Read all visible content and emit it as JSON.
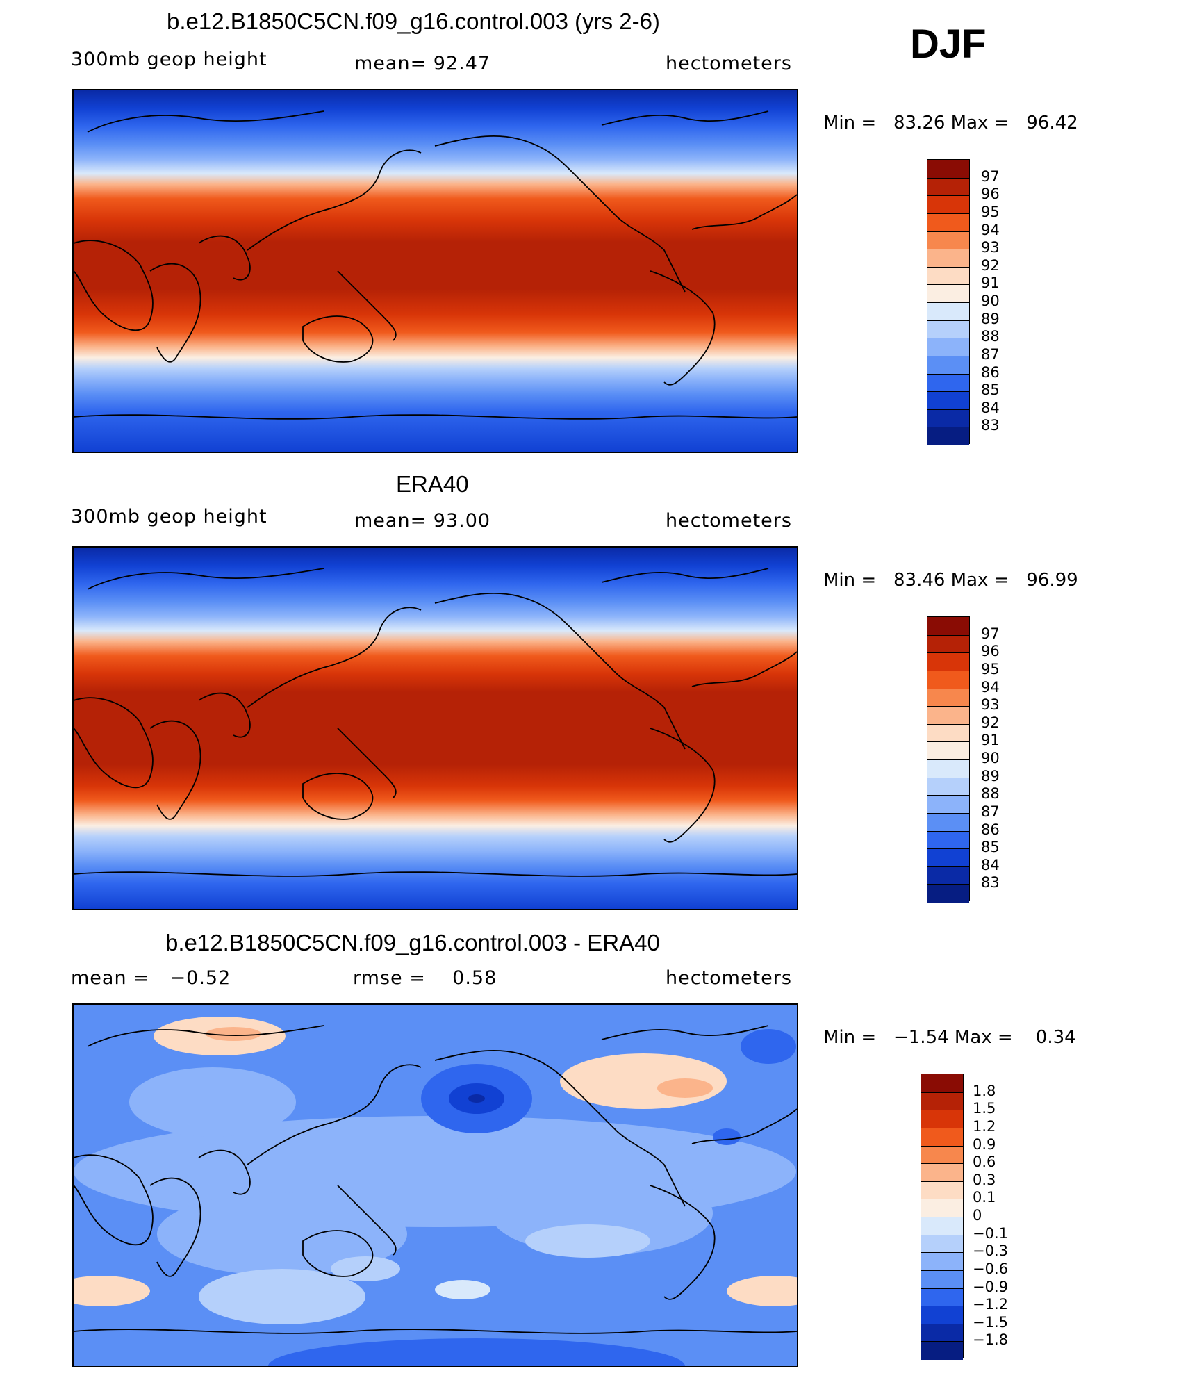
{
  "season_label": "DJF",
  "chart_data": [
    {
      "type": "heatmap",
      "title": "b.e12.B1850C5CN.f09_g16.control.003 (yrs 2-6)",
      "left_label": "300mb geop height",
      "center_label": "mean=   92.47",
      "right_label": "hectometers",
      "min_max": "Min =   83.26 Max =   96.42",
      "mean": 92.47,
      "min": 83.26,
      "max": 96.42,
      "colorbar": {
        "labels": [
          "97",
          "96",
          "95",
          "94",
          "93",
          "92",
          "91",
          "90",
          "89",
          "88",
          "87",
          "86",
          "85",
          "84",
          "83"
        ],
        "colors": [
          "#8a0c04",
          "#b52206",
          "#d83508",
          "#f05a1c",
          "#f7874d",
          "#fbb48b",
          "#fddcc4",
          "#fbeee2",
          "#d9e9fb",
          "#b5d0fb",
          "#8cb3fa",
          "#5b8ff5",
          "#2f66ee",
          "#1141d3",
          "#0a2aa6",
          "#061d82"
        ]
      }
    },
    {
      "type": "heatmap",
      "title": "ERA40",
      "left_label": "300mb geop height",
      "center_label": "mean=   93.00",
      "right_label": "hectometers",
      "min_max": "Min =   83.46 Max =   96.99",
      "mean": 93.0,
      "min": 83.46,
      "max": 96.99,
      "colorbar": {
        "labels": [
          "97",
          "96",
          "95",
          "94",
          "93",
          "92",
          "91",
          "90",
          "89",
          "88",
          "87",
          "86",
          "85",
          "84",
          "83"
        ],
        "colors": [
          "#8a0c04",
          "#b52206",
          "#d83508",
          "#f05a1c",
          "#f7874d",
          "#fbb48b",
          "#fddcc4",
          "#fbeee2",
          "#d9e9fb",
          "#b5d0fb",
          "#8cb3fa",
          "#5b8ff5",
          "#2f66ee",
          "#1141d3",
          "#0a2aa6",
          "#061d82"
        ]
      }
    },
    {
      "type": "heatmap",
      "title": "b.e12.B1850C5CN.f09_g16.control.003 - ERA40",
      "left_label": "mean =   −0.52",
      "center_label": "rmse =    0.58",
      "right_label": "hectometers",
      "min_max": "Min =   −1.54 Max =    0.34",
      "mean": -0.52,
      "rmse": 0.58,
      "min": -1.54,
      "max": 0.34,
      "colorbar": {
        "labels": [
          "1.8",
          "1.5",
          "1.2",
          "0.9",
          "0.6",
          "0.3",
          "0.1",
          "0",
          "−0.1",
          "−0.3",
          "−0.6",
          "−0.9",
          "−1.2",
          "−1.5",
          "−1.8"
        ],
        "colors": [
          "#8a0c04",
          "#b52206",
          "#d83508",
          "#f05a1c",
          "#f7874d",
          "#fbb48b",
          "#fddcc4",
          "#fbeee2",
          "#d9e9fb",
          "#b5d0fb",
          "#8cb3fa",
          "#5b8ff5",
          "#2f66ee",
          "#1141d3",
          "#0a2aa6",
          "#061d82"
        ]
      }
    }
  ]
}
